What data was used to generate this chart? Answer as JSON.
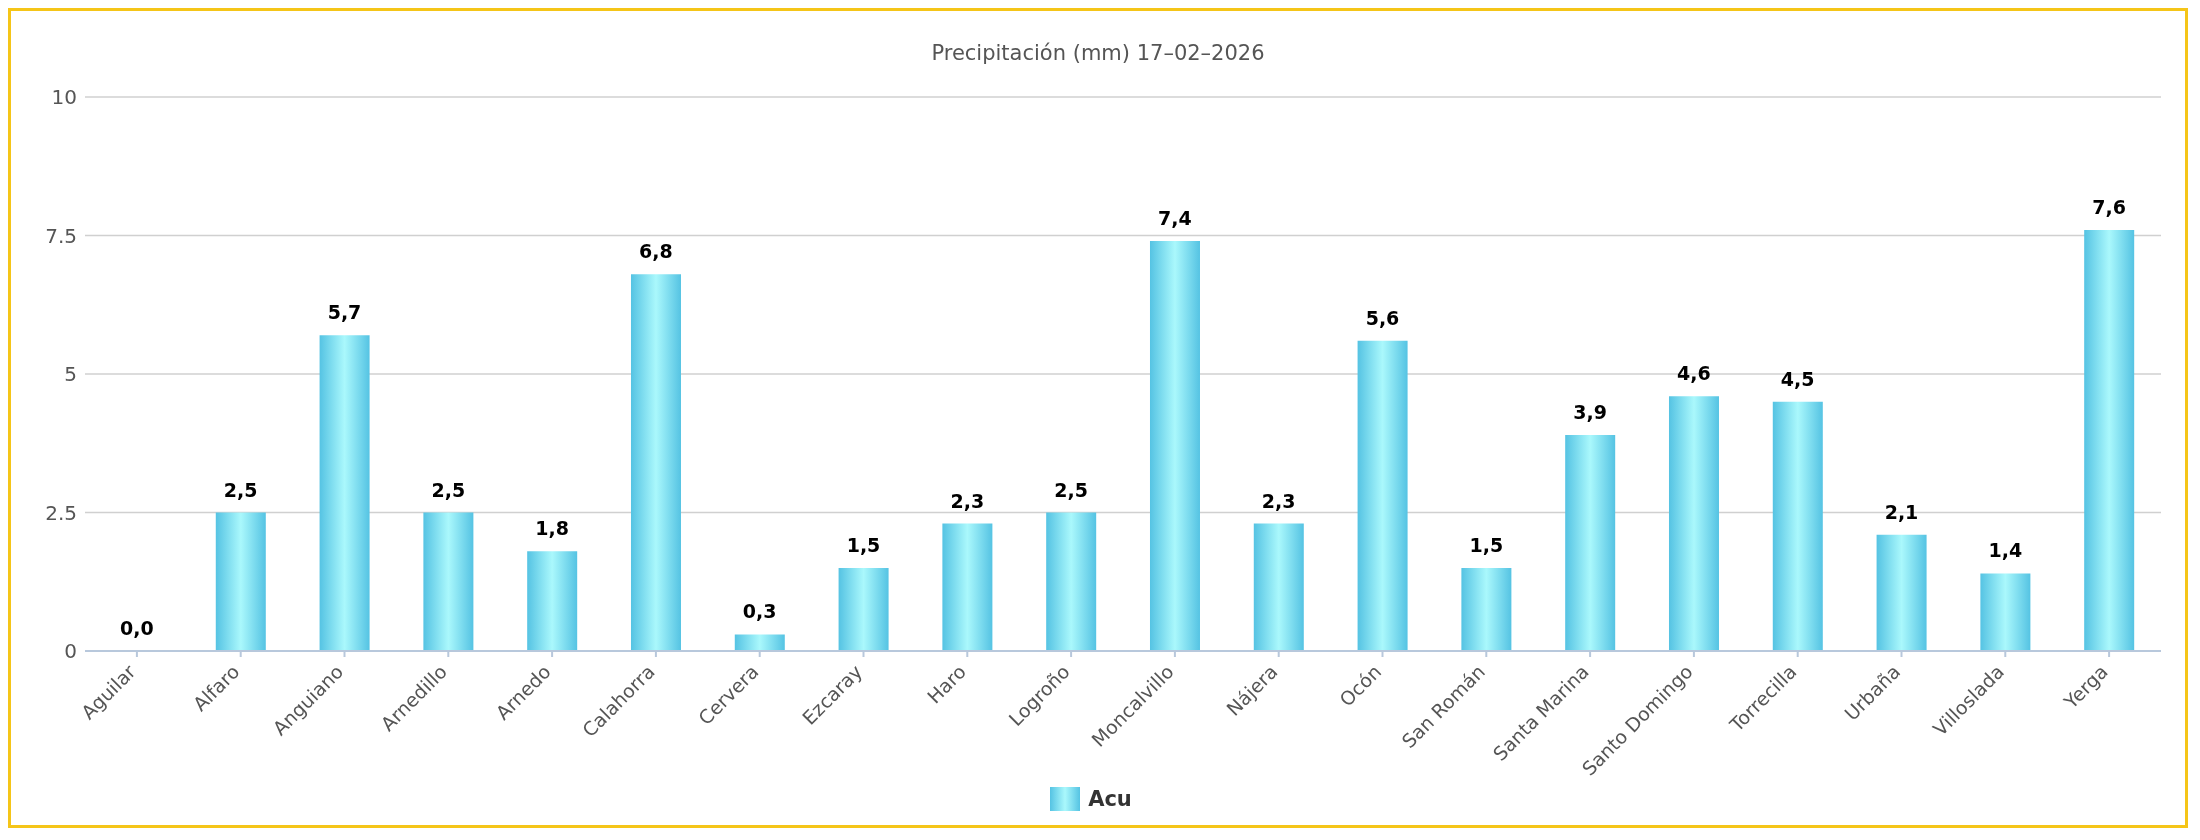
{
  "chart_data": {
    "type": "bar",
    "title": "Precipitación (mm) 17–02–2026",
    "categories": [
      "Aguilar",
      "Alfaro",
      "Anguiano",
      "Arnedillo",
      "Arnedo",
      "Calahorra",
      "Cervera",
      "Ezcaray",
      "Haro",
      "Logroño",
      "Moncalvillo",
      "Nájera",
      "Ocón",
      "San Román",
      "Santa Marina",
      "Santo Domingo",
      "Torrecilla",
      "Urbaña",
      "Villoslada",
      "Yerga"
    ],
    "series": [
      {
        "name": "Acu",
        "color": "#55c3e3",
        "values": [
          0.0,
          2.5,
          5.7,
          2.5,
          1.8,
          6.8,
          0.3,
          1.5,
          2.3,
          2.5,
          7.4,
          2.3,
          5.6,
          1.5,
          3.9,
          4.6,
          4.5,
          2.1,
          1.4,
          7.6
        ],
        "value_labels": [
          "0,0",
          "2,5",
          "5,7",
          "2,5",
          "1,8",
          "6,8",
          "0,3",
          "1,5",
          "2,3",
          "2,5",
          "7,4",
          "2,3",
          "5,6",
          "1,5",
          "3,9",
          "4,6",
          "4,5",
          "2,1",
          "1,4",
          "7,6"
        ]
      }
    ],
    "ylim": [
      0,
      10
    ],
    "yticks": [
      0,
      2.5,
      5,
      7.5,
      10
    ],
    "grid": "y",
    "legend": "bottom"
  }
}
